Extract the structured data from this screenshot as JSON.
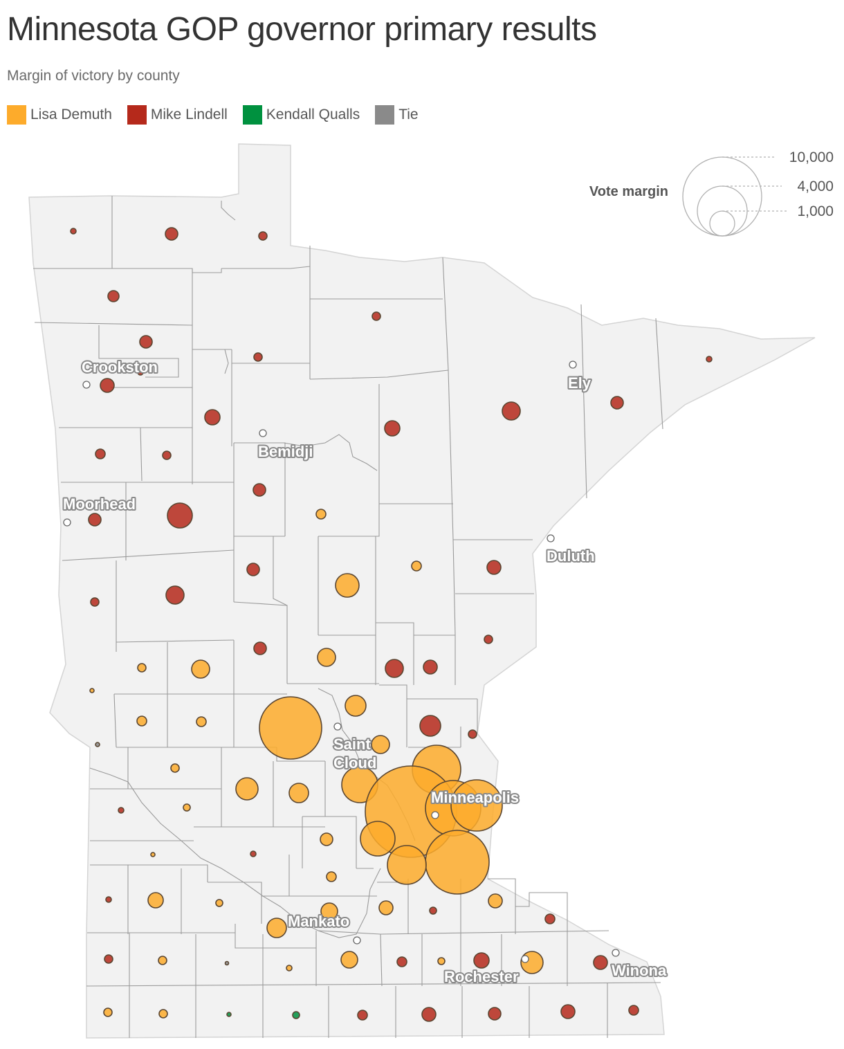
{
  "header": {
    "title": "Minnesota GOP governor primary results",
    "subtitle": "Margin of victory by county"
  },
  "legend": [
    {
      "label": "Lisa Demuth",
      "color": "#fdab2b"
    },
    {
      "label": "Mike Lindell",
      "color": "#b5291b"
    },
    {
      "label": "Kendall Qualls",
      "color": "#00913f"
    },
    {
      "label": "Tie",
      "color": "#8a8a8a"
    }
  ],
  "size_legend": {
    "title": "Vote margin",
    "values": [
      {
        "label": "10,000",
        "value": 10000
      },
      {
        "label": "4,000",
        "value": 4000
      },
      {
        "label": "1,000",
        "value": 1000
      }
    ]
  },
  "cities": [
    {
      "name": "Crookston"
    },
    {
      "name": "Ely"
    },
    {
      "name": "Bemidji"
    },
    {
      "name": "Moorhead"
    },
    {
      "name": "Duluth"
    },
    {
      "name": "Saint Cloud"
    },
    {
      "name": "Minneapolis"
    },
    {
      "name": "Mankato"
    },
    {
      "name": "Rochester"
    },
    {
      "name": "Winona"
    }
  ],
  "colors": {
    "demuth": "#fdab2b",
    "lindell": "#b5291b",
    "qualls": "#00913f",
    "tie": "#8a8a8a",
    "state_fill": "#f2f2f2",
    "county_border": "#9a9a9a"
  }
}
